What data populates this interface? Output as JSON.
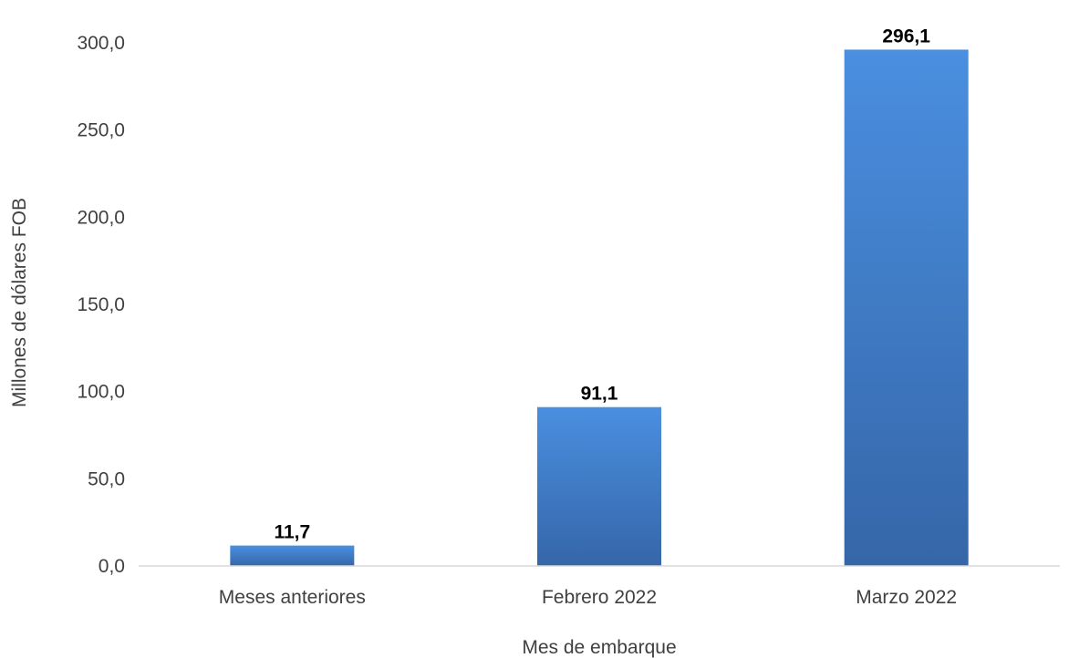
{
  "chart_data": {
    "type": "bar",
    "title": "",
    "xlabel": "Mes de embarque",
    "ylabel": "Millones de dólares FOB",
    "categories": [
      "Meses anteriores",
      "Febrero 2022",
      "Marzo 2022"
    ],
    "values": [
      11.7,
      91.1,
      296.1
    ],
    "value_labels": [
      "11,7",
      "91,1",
      "296,1"
    ],
    "ylim": [
      0,
      300
    ],
    "yticks": [
      0,
      50,
      100,
      150,
      200,
      250,
      300
    ],
    "ytick_labels": [
      "0,0",
      "50,0",
      "100,0",
      "150,0",
      "200,0",
      "250,0",
      "300,0"
    ],
    "grid": false,
    "legend": "none",
    "colors": {
      "bar_top": "#4a8fe0",
      "bar_bottom": "#3566a8",
      "axis": "#d9d9d9",
      "text": "#404040",
      "data_label": "#000000"
    }
  }
}
